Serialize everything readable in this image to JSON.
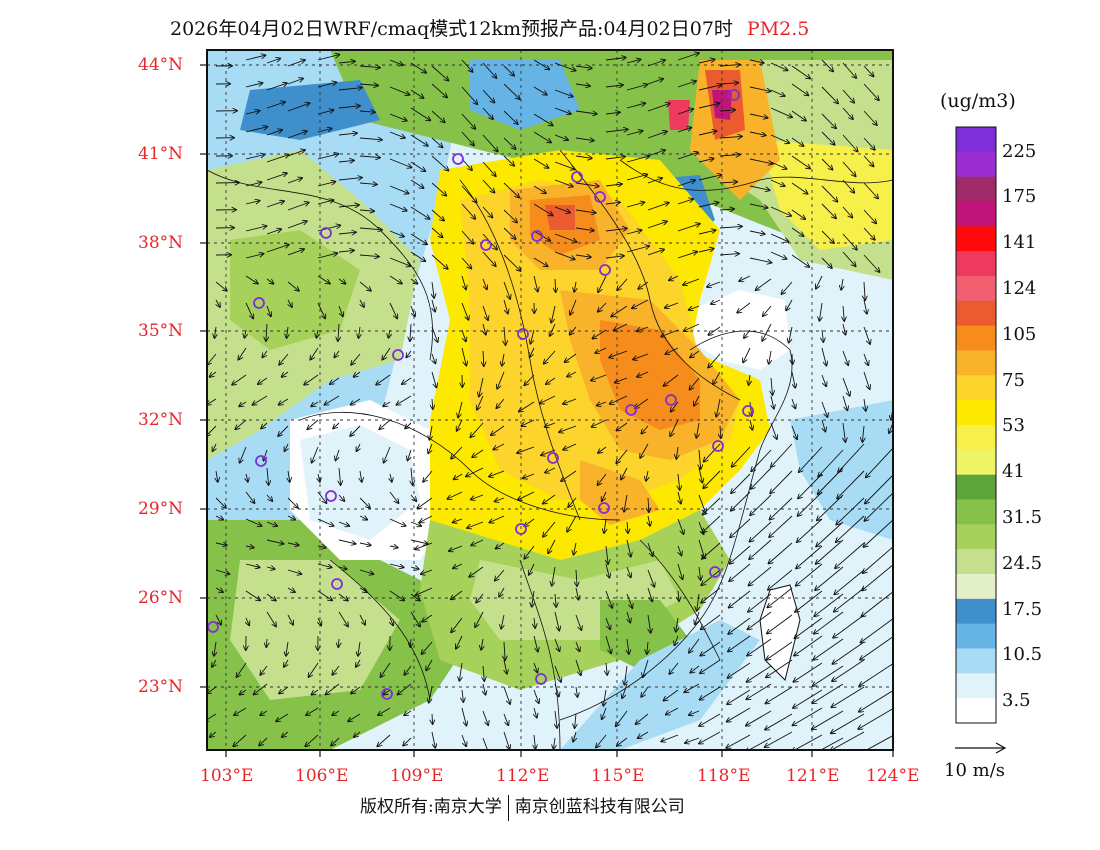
{
  "header": {
    "title": "2026年04月02日WRF/cmaq模式12km预报产品:04月02日07时",
    "pollutant": "PM2.5"
  },
  "colors": {
    "accent": "#e8262a",
    "scale": [
      "#ffffff",
      "#e0f3fb",
      "#a8dcf5",
      "#66b3e6",
      "#3f8fcc",
      "#e3efc8",
      "#c5e08c",
      "#a6d15a",
      "#86c24a",
      "#5da53a",
      "#eef565",
      "#f7ef4a",
      "#fde800",
      "#fcd42b",
      "#f9b32b",
      "#f58c1b",
      "#ec5a30",
      "#f06070",
      "#ee3a5e",
      "#ff0a0a",
      "#c01478",
      "#a02a6a",
      "#9a2ed0",
      "#7d2fd8"
    ]
  },
  "legend": {
    "unit_label": "(ug/m3)",
    "labels": [
      "225",
      "175",
      "141",
      "124",
      "105",
      "75",
      "53",
      "41",
      "31.5",
      "24.5",
      "17.5",
      "10.5",
      "3.5"
    ]
  },
  "axes": {
    "latitudes": [
      "44°N",
      "41°N",
      "38°N",
      "35°N",
      "32°N",
      "29°N",
      "26°N",
      "23°N"
    ],
    "longitudes": [
      "103°E",
      "106°E",
      "109°E",
      "112°E",
      "115°E",
      "118°E",
      "121°E",
      "124°E"
    ]
  },
  "wind_reference": "10 m/s",
  "footer": {
    "left": "版权所有:南京大学",
    "right": "南京创蓝科技有限公司"
  }
}
